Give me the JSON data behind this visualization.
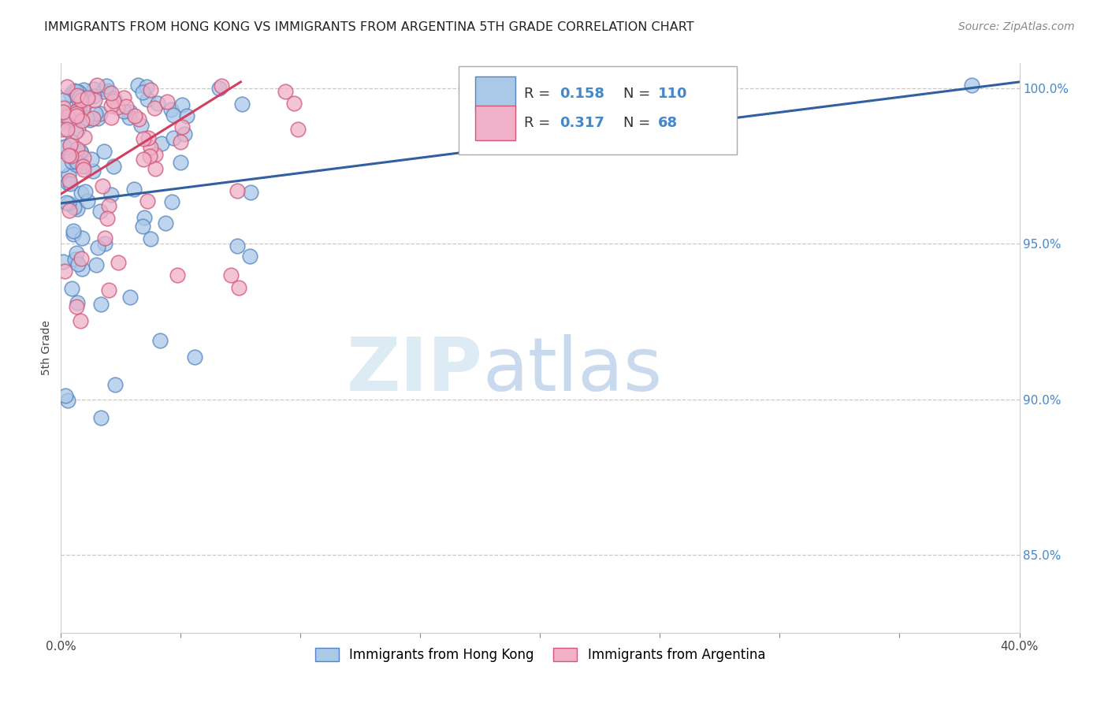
{
  "title": "IMMIGRANTS FROM HONG KONG VS IMMIGRANTS FROM ARGENTINA 5TH GRADE CORRELATION CHART",
  "source": "Source: ZipAtlas.com",
  "ylabel": "5th Grade",
  "ytick_vals": [
    1.0,
    0.95,
    0.9,
    0.85
  ],
  "ytick_labels": [
    "100.0%",
    "95.0%",
    "90.0%",
    "85.0%"
  ],
  "xlim": [
    0.0,
    0.4
  ],
  "ylim": [
    0.825,
    1.008
  ],
  "hk_color": "#aac8e8",
  "hk_edge_color": "#5585c0",
  "arg_color": "#f0b0c8",
  "arg_edge_color": "#d05878",
  "hk_line_color": "#3060a0",
  "arg_line_color": "#d04060",
  "legend_box_color": "#dddddd",
  "r_n_color": "#4488cc",
  "watermark_zip_color": "#d8e8f4",
  "watermark_atlas_color": "#c0d4ec",
  "title_fontsize": 11.5,
  "source_fontsize": 10,
  "tick_label_fontsize": 11,
  "ylabel_fontsize": 10,
  "legend_fontsize": 13
}
